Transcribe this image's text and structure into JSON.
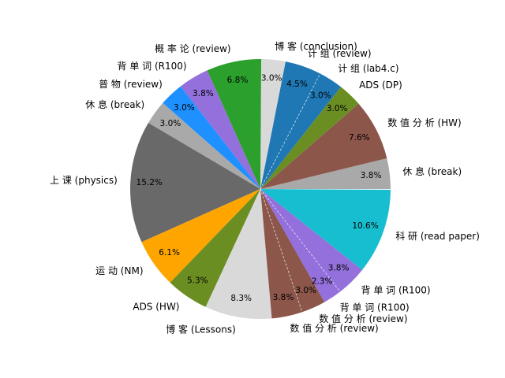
{
  "figure": {
    "background_color": "#ffffff",
    "text_color": "#000000"
  },
  "chart_data": {
    "type": "pie",
    "title": "",
    "start_angle_deg": 0,
    "direction": "counterclockwise",
    "legend": "none",
    "slices": [
      {
        "label": "休 息 (break)",
        "value": 3.8,
        "percent_label": "3.8%",
        "color": "#a9a9a9"
      },
      {
        "label": "数 值 分 析 (HW)",
        "value": 7.6,
        "percent_label": "7.6%",
        "color": "#8c564b"
      },
      {
        "label": "ADS (DP)",
        "value": 3.0,
        "percent_label": "3.0%",
        "color": "#6b8e23"
      },
      {
        "label": "计 组 (lab4.c)",
        "value": 3.0,
        "percent_label": "3.0%",
        "color": "#1f77b4"
      },
      {
        "label": "计 组 (review)",
        "value": 4.5,
        "percent_label": "4.5%",
        "color": "#1f77b4"
      },
      {
        "label": "博 客 (conclusion)",
        "value": 3.0,
        "percent_label": "3.0%",
        "color": "#d9d9d9"
      },
      {
        "label": "概 率 论 (review)",
        "value": 6.8,
        "percent_label": "6.8%",
        "color": "#2ca02c"
      },
      {
        "label": "背 单 词 (R100)",
        "value": 3.8,
        "percent_label": "3.8%",
        "color": "#9370db"
      },
      {
        "label": "普 物 (review)",
        "value": 3.0,
        "percent_label": "3.0%",
        "color": "#1e90ff"
      },
      {
        "label": "休 息 (break)",
        "value": 3.0,
        "percent_label": "3.0%",
        "color": "#a9a9a9"
      },
      {
        "label": "上 课 (physics)",
        "value": 15.2,
        "percent_label": "15.2%",
        "color": "#696969"
      },
      {
        "label": "运 动 (NM)",
        "value": 6.1,
        "percent_label": "6.1%",
        "color": "#ffa500"
      },
      {
        "label": "ADS (HW)",
        "value": 5.3,
        "percent_label": "5.3%",
        "color": "#6b8e23"
      },
      {
        "label": "博 客 (Lessons)",
        "value": 8.3,
        "percent_label": "8.3%",
        "color": "#d9d9d9"
      },
      {
        "label": "数 值 分 析 (review)",
        "value": 3.8,
        "percent_label": "3.8%",
        "color": "#8c564b"
      },
      {
        "label": "数 值 分 析 (review)",
        "value": 3.0,
        "percent_label": "3.0%",
        "color": "#8c564b"
      },
      {
        "label": "背 单 词 (R100)",
        "value": 2.3,
        "percent_label": "2.3%",
        "color": "#9370db"
      },
      {
        "label": "背 单 词 (R100)",
        "value": 3.8,
        "percent_label": "3.8%",
        "color": "#9370db"
      },
      {
        "label": "科 研 (read paper)",
        "value": 10.6,
        "percent_label": "10.6%",
        "color": "#17becf"
      }
    ]
  }
}
